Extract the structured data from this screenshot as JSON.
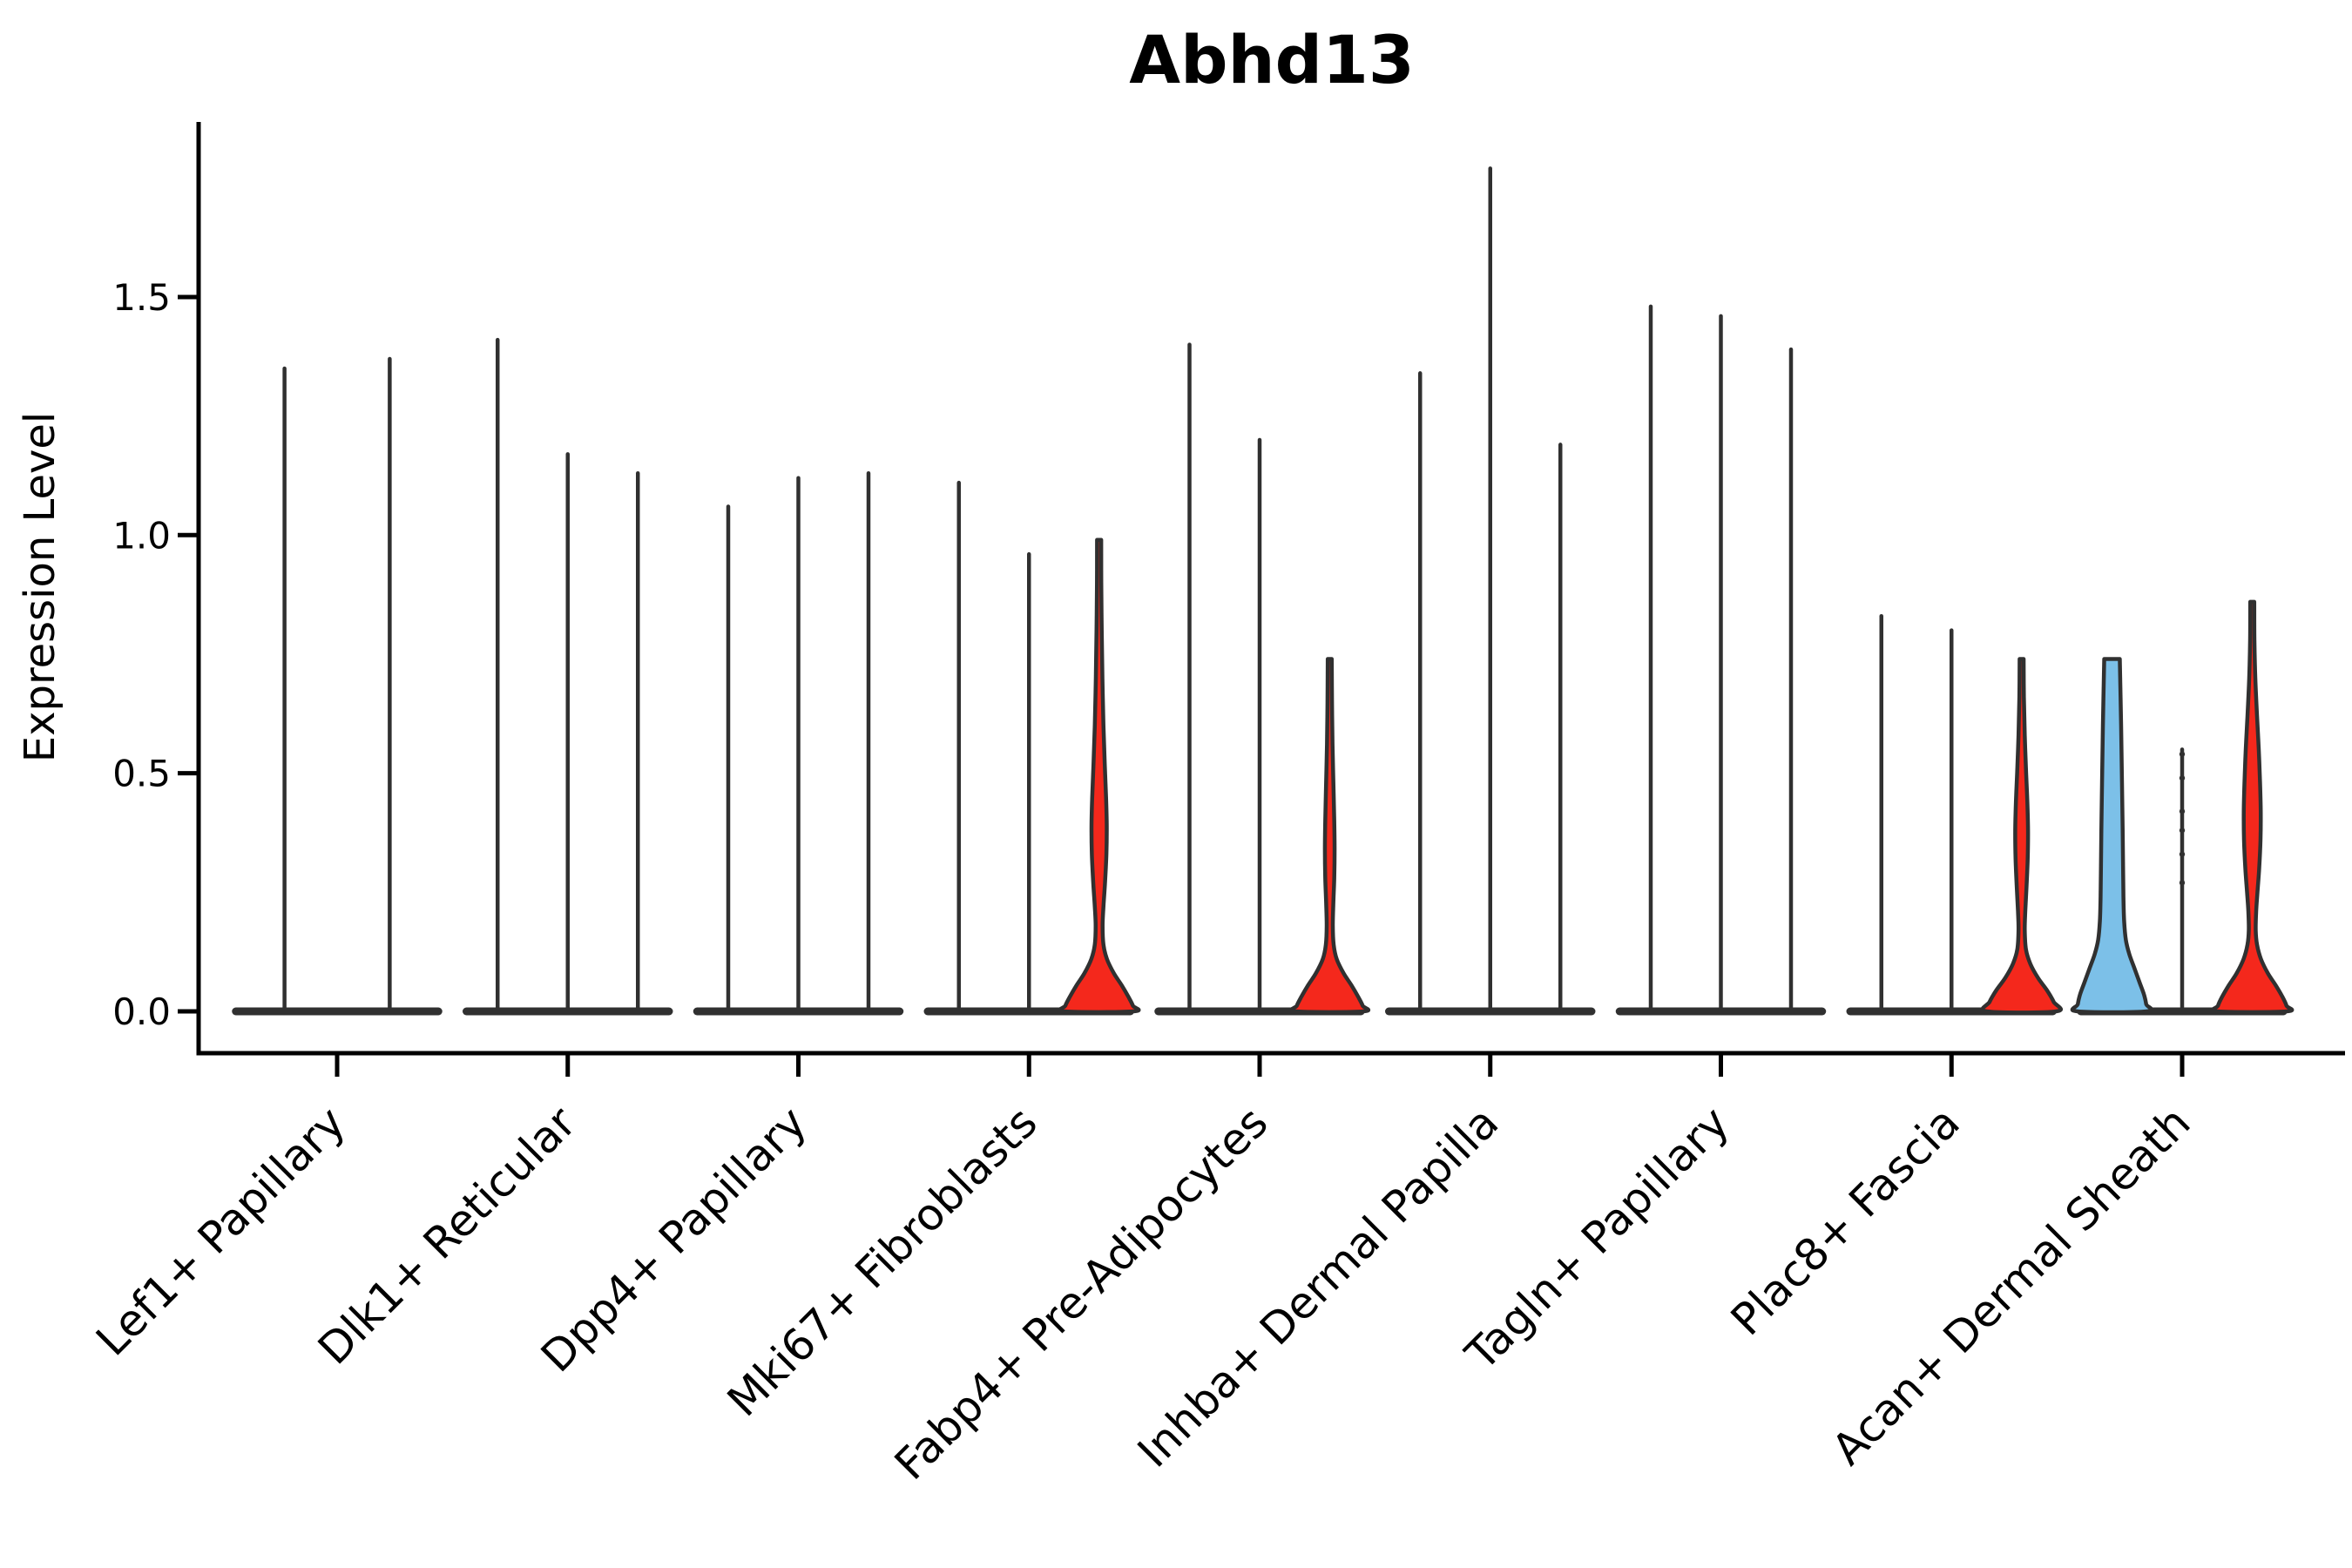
{
  "chart_data": {
    "type": "violin",
    "title": "Abhd13",
    "ylabel": "Expression Level",
    "xlabel": "",
    "legend": "none",
    "grid": false,
    "ylim": [
      -0.088,
      1.868
    ],
    "ytick_values": [
      0,
      0.5,
      1.0,
      1.5
    ],
    "ytick_labels": [
      "0.0",
      "0.5",
      "1.0",
      "1.5"
    ],
    "categories": [
      "Lef1+ Papillary",
      "Dlk1+ Reticular",
      "Dpp4+ Papillary",
      "Mki67+ Fibroblasts",
      "Fabp4+ Pre-Adipocytes",
      "Inhba+ Dermal Papilla",
      "Tagln+ Papillary",
      "Plac8+ Fascia",
      "Acan+ Dermal Sheath"
    ],
    "colors": {
      "red_fill": "#f4281c",
      "blue_fill": "#7cc0e8",
      "violin_outline": "#303030",
      "axis": "#000000",
      "background": "#ffffff"
    },
    "groups": [
      {
        "category": "Lef1+ Papillary",
        "violins": [
          {
            "max": 1.35,
            "style": "line"
          },
          {
            "max": 1.37,
            "style": "line"
          }
        ]
      },
      {
        "category": "Dlk1+ Reticular",
        "violins": [
          {
            "max": 1.41,
            "style": "line"
          },
          {
            "max": 1.17,
            "style": "line"
          },
          {
            "max": 1.13,
            "style": "line"
          }
        ]
      },
      {
        "category": "Dpp4+ Papillary",
        "violins": [
          {
            "max": 1.06,
            "style": "line"
          },
          {
            "max": 1.12,
            "style": "line"
          },
          {
            "max": 1.13,
            "style": "line"
          }
        ]
      },
      {
        "category": "Mki67+ Fibroblasts",
        "violins": [
          {
            "max": 1.11,
            "style": "line"
          },
          {
            "max": 0.96,
            "style": "line"
          },
          {
            "max": 0.99,
            "style": "violin",
            "fill": "red",
            "profile": "red_mki67"
          }
        ]
      },
      {
        "category": "Fabp4+ Pre-Adipocytes",
        "violins": [
          {
            "max": 1.4,
            "style": "line"
          },
          {
            "max": 1.2,
            "style": "line"
          },
          {
            "max": 0.74,
            "style": "violin",
            "fill": "red",
            "profile": "red_fabp4"
          }
        ]
      },
      {
        "category": "Inhba+ Dermal Papilla",
        "violins": [
          {
            "max": 1.34,
            "style": "line"
          },
          {
            "max": 1.77,
            "style": "line"
          },
          {
            "max": 1.19,
            "style": "line"
          }
        ]
      },
      {
        "category": "Tagln+ Papillary",
        "violins": [
          {
            "max": 1.48,
            "style": "line"
          },
          {
            "max": 1.46,
            "style": "line"
          },
          {
            "max": 1.39,
            "style": "line"
          }
        ]
      },
      {
        "category": "Plac8+ Fascia",
        "violins": [
          {
            "max": 0.83,
            "style": "line"
          },
          {
            "max": 0.8,
            "style": "line"
          },
          {
            "max": 0.74,
            "style": "violin",
            "fill": "red",
            "profile": "red_plac8"
          }
        ]
      },
      {
        "category": "Acan+ Dermal Sheath",
        "violins": [
          {
            "max": 0.74,
            "style": "violin",
            "fill": "blue",
            "profile": "blue_acan"
          },
          {
            "max": 0.55,
            "style": "line",
            "markers": [
              0.54,
              0.49,
              0.42,
              0.38,
              0.33,
              0.27
            ]
          },
          {
            "max": 0.86,
            "style": "violin",
            "fill": "red",
            "profile": "red_acan"
          }
        ]
      }
    ],
    "profiles": {
      "red_mki67": [
        [
          0.99,
          0.06
        ],
        [
          0.9,
          0.062
        ],
        [
          0.8,
          0.075
        ],
        [
          0.7,
          0.095
        ],
        [
          0.6,
          0.125
        ],
        [
          0.52,
          0.162
        ],
        [
          0.45,
          0.2
        ],
        [
          0.39,
          0.22
        ],
        [
          0.33,
          0.21
        ],
        [
          0.27,
          0.17
        ],
        [
          0.22,
          0.125
        ],
        [
          0.18,
          0.1
        ],
        [
          0.14,
          0.125
        ],
        [
          0.11,
          0.225
        ],
        [
          0.08,
          0.425
        ],
        [
          0.055,
          0.65
        ],
        [
          0.03,
          0.85
        ],
        [
          0.012,
          0.975
        ],
        [
          0.0,
          1.0
        ]
      ],
      "red_fabp4": [
        [
          0.74,
          0.057
        ],
        [
          0.65,
          0.065
        ],
        [
          0.56,
          0.08
        ],
        [
          0.48,
          0.105
        ],
        [
          0.4,
          0.13
        ],
        [
          0.34,
          0.14
        ],
        [
          0.28,
          0.13
        ],
        [
          0.23,
          0.105
        ],
        [
          0.18,
          0.088
        ],
        [
          0.14,
          0.113
        ],
        [
          0.11,
          0.2
        ],
        [
          0.08,
          0.4
        ],
        [
          0.055,
          0.625
        ],
        [
          0.03,
          0.825
        ],
        [
          0.012,
          0.95
        ],
        [
          0.0,
          0.975
        ]
      ],
      "red_plac8": [
        [
          0.74,
          0.057
        ],
        [
          0.66,
          0.065
        ],
        [
          0.58,
          0.09
        ],
        [
          0.5,
          0.13
        ],
        [
          0.44,
          0.165
        ],
        [
          0.38,
          0.185
        ],
        [
          0.32,
          0.175
        ],
        [
          0.26,
          0.14
        ],
        [
          0.21,
          0.105
        ],
        [
          0.17,
          0.09
        ],
        [
          0.13,
          0.125
        ],
        [
          0.1,
          0.25
        ],
        [
          0.07,
          0.475
        ],
        [
          0.045,
          0.725
        ],
        [
          0.02,
          0.925
        ],
        [
          0.0,
          1.0
        ]
      ],
      "red_acan": [
        [
          0.86,
          0.057
        ],
        [
          0.78,
          0.062
        ],
        [
          0.7,
          0.088
        ],
        [
          0.62,
          0.138
        ],
        [
          0.55,
          0.188
        ],
        [
          0.48,
          0.225
        ],
        [
          0.42,
          0.245
        ],
        [
          0.36,
          0.238
        ],
        [
          0.3,
          0.2
        ],
        [
          0.25,
          0.15
        ],
        [
          0.21,
          0.113
        ],
        [
          0.17,
          0.1
        ],
        [
          0.14,
          0.138
        ],
        [
          0.11,
          0.25
        ],
        [
          0.08,
          0.45
        ],
        [
          0.055,
          0.675
        ],
        [
          0.03,
          0.875
        ],
        [
          0.012,
          0.988
        ],
        [
          0.0,
          1.0
        ]
      ],
      "blue_acan": [
        [
          0.74,
          0.225
        ],
        [
          0.6,
          0.263
        ],
        [
          0.48,
          0.288
        ],
        [
          0.38,
          0.308
        ],
        [
          0.3,
          0.32
        ],
        [
          0.24,
          0.33
        ],
        [
          0.19,
          0.35
        ],
        [
          0.15,
          0.4
        ],
        [
          0.12,
          0.5
        ],
        [
          0.09,
          0.65
        ],
        [
          0.06,
          0.8
        ],
        [
          0.035,
          0.925
        ],
        [
          0.015,
          0.988
        ],
        [
          0.0,
          1.0
        ]
      ]
    }
  }
}
